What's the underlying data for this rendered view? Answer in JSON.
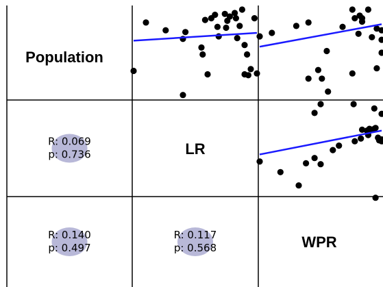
{
  "chart_data": {
    "type": "scatter",
    "variables": [
      "Population",
      "LR",
      "WPR"
    ],
    "colors": {
      "points": "#000000",
      "fit_line": "#1a1aff",
      "stat_blob": "#b8b8d8"
    },
    "correlations": [
      {
        "row": 1,
        "col": 0,
        "r_text": "R: 0.069",
        "p_text": "p: 0.736"
      },
      {
        "row": 2,
        "col": 0,
        "r_text": "R: 0.140",
        "p_text": "p: 0.497"
      },
      {
        "row": 2,
        "col": 1,
        "r_text": "R: 0.117",
        "p_text": "p: 0.568"
      }
    ],
    "scatter_panels": [
      {
        "row": 0,
        "col": 1,
        "x_var": "LR",
        "y_var": "Population",
        "xlim": [
          0,
          10
        ],
        "ylim": [
          0,
          10
        ],
        "fit": [
          [
            0,
            6.4
          ],
          [
            10,
            7.3
          ]
        ],
        "points": [
          [
            0,
            2.9
          ],
          [
            1.0,
            8.5
          ],
          [
            2.6,
            7.6
          ],
          [
            4.0,
            6.6
          ],
          [
            4.2,
            7.4
          ],
          [
            5.5,
            5.6
          ],
          [
            5.6,
            4.8
          ],
          [
            6.0,
            2.5
          ],
          [
            5.8,
            8.8
          ],
          [
            6.3,
            9.0
          ],
          [
            6.6,
            9.4
          ],
          [
            6.8,
            8.0
          ],
          [
            6.9,
            6.9
          ],
          [
            7.4,
            9.5
          ],
          [
            7.6,
            8.7
          ],
          [
            7.5,
            7.9
          ],
          [
            7.8,
            9.2
          ],
          [
            8.2,
            9.6
          ],
          [
            8.3,
            9.0
          ],
          [
            8.6,
            8.1
          ],
          [
            8.8,
            10.0
          ],
          [
            8.4,
            6.7
          ],
          [
            9.0,
            5.9
          ],
          [
            9.2,
            4.8
          ],
          [
            9.5,
            3.1
          ],
          [
            9.0,
            2.5
          ],
          [
            9.3,
            2.4
          ],
          [
            10.0,
            2.6
          ],
          [
            9.8,
            9.0
          ],
          [
            4.0,
            0.1
          ]
        ]
      },
      {
        "row": 0,
        "col": 2,
        "x_var": "WPR",
        "y_var": "Population",
        "xlim": [
          0,
          10
        ],
        "ylim": [
          0,
          10
        ],
        "fit": [
          [
            0,
            5.7
          ],
          [
            10,
            8.3
          ]
        ],
        "points": [
          [
            0,
            6.9
          ],
          [
            1.0,
            7.3
          ],
          [
            3.0,
            8.1
          ],
          [
            4.0,
            8.5
          ],
          [
            4.0,
            2.0
          ],
          [
            4.8,
            3.0
          ],
          [
            5.1,
            2.0
          ],
          [
            5.6,
            0.5
          ],
          [
            5.5,
            5.2
          ],
          [
            6.8,
            8.0
          ],
          [
            7.6,
            2.6
          ],
          [
            7.6,
            10.0
          ],
          [
            7.8,
            9.0
          ],
          [
            8.1,
            7.2
          ],
          [
            8.2,
            9.3
          ],
          [
            8.4,
            9.0
          ],
          [
            8.4,
            8.6
          ],
          [
            8.9,
            10.0
          ],
          [
            9.2,
            6.8
          ],
          [
            9.6,
            7.8
          ],
          [
            9.6,
            3.2
          ],
          [
            10.0,
            6.5
          ],
          [
            10.0,
            5.0
          ],
          [
            10.0,
            7.6
          ]
        ]
      },
      {
        "row": 1,
        "col": 2,
        "x_var": "WPR",
        "y_var": "LR",
        "xlim": [
          0,
          10
        ],
        "ylim": [
          0,
          10
        ],
        "fit": [
          [
            0,
            4.3
          ],
          [
            10,
            7.0
          ]
        ],
        "points": [
          [
            0,
            3.5
          ],
          [
            1.7,
            2.3
          ],
          [
            3.2,
            0.8
          ],
          [
            3.8,
            3.3
          ],
          [
            4.5,
            3.9
          ],
          [
            5.0,
            3.2
          ],
          [
            6.0,
            4.8
          ],
          [
            6.5,
            5.3
          ],
          [
            7.8,
            5.8
          ],
          [
            8.3,
            6.1
          ],
          [
            8.4,
            7.1
          ],
          [
            8.8,
            7.0
          ],
          [
            8.9,
            6.5
          ],
          [
            9.0,
            7.2
          ],
          [
            9.2,
            7.1
          ],
          [
            9.4,
            7.2
          ],
          [
            9.5,
            7.3
          ],
          [
            9.7,
            6.2
          ],
          [
            9.8,
            5.9
          ],
          [
            10.0,
            5.8
          ],
          [
            10.0,
            6.0
          ],
          [
            4.5,
            9.0
          ],
          [
            5.0,
            10.0
          ],
          [
            7.7,
            10.0
          ],
          [
            9.4,
            9.5
          ],
          [
            10.0,
            8.9
          ],
          [
            9.5,
            -0.6
          ]
        ]
      }
    ]
  }
}
